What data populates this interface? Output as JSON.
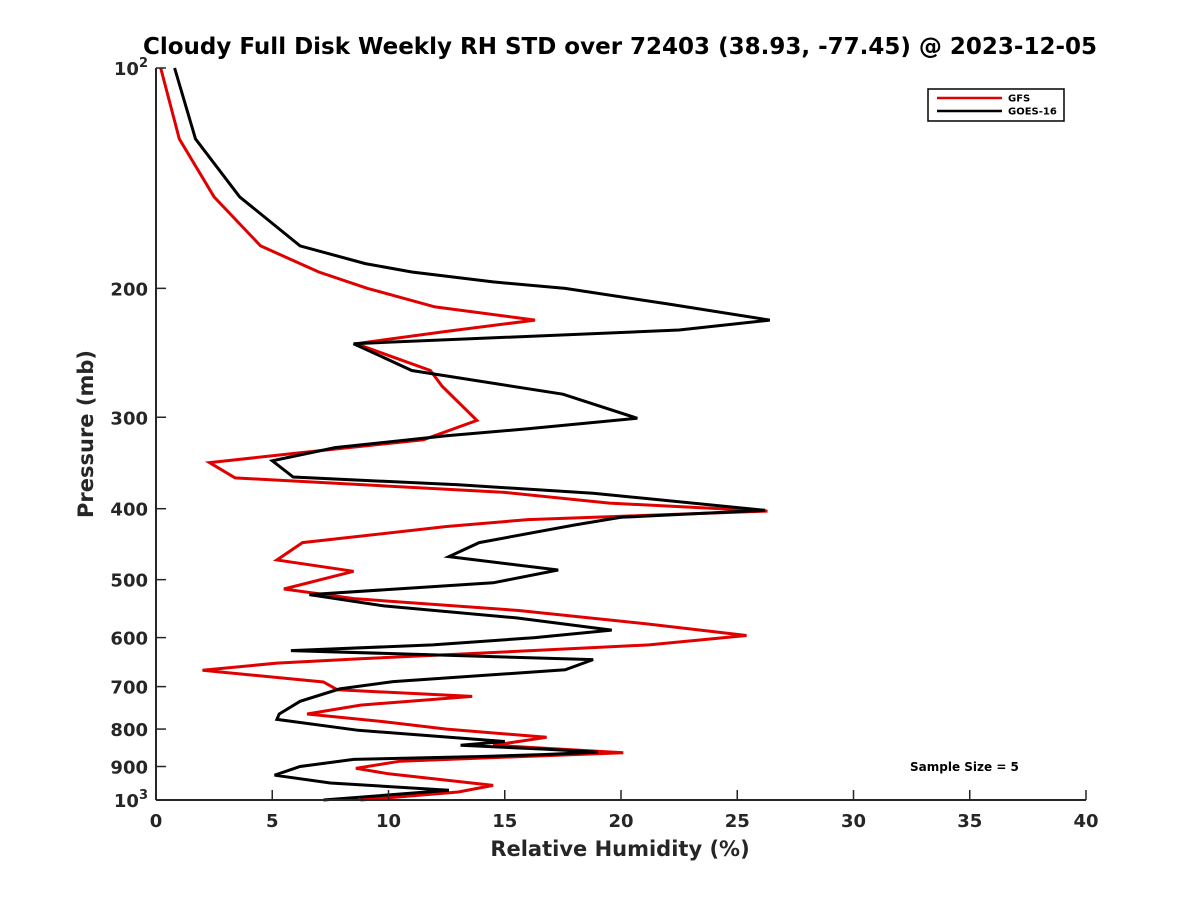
{
  "chart_data": {
    "type": "line",
    "title": "Cloudy Full Disk Weekly RH STD over 72403 (38.93, -77.45) @ 2023-12-05",
    "xlabel": "Relative Humidity (%)",
    "ylabel": "Pressure (mb)",
    "xlim": [
      0,
      40
    ],
    "ylim": [
      100,
      1000
    ],
    "yscale": "log",
    "y_reversed": true,
    "xticks": [
      0,
      5,
      10,
      15,
      20,
      25,
      30,
      35,
      40
    ],
    "xtick_labels": [
      "0",
      "5",
      "10",
      "15",
      "20",
      "25",
      "30",
      "35",
      "40"
    ],
    "yticks": [
      100,
      200,
      300,
      400,
      500,
      600,
      700,
      800,
      900,
      1000
    ],
    "ytick_labels": [
      {
        "base": "10",
        "exp": "2"
      },
      {
        "base": "200"
      },
      {
        "base": "300"
      },
      {
        "base": "400"
      },
      {
        "base": "500"
      },
      {
        "base": "600"
      },
      {
        "base": "700"
      },
      {
        "base": "800"
      },
      {
        "base": "900"
      },
      {
        "base": "10",
        "exp": "3"
      }
    ],
    "grid": false,
    "legend_position": "top-right",
    "annotation": "Sample Size = 5",
    "series": [
      {
        "name": "GFS",
        "color": "#e00000",
        "points": [
          [
            0.2,
            100
          ],
          [
            1.0,
            125
          ],
          [
            2.5,
            150
          ],
          [
            4.5,
            175
          ],
          [
            7.0,
            190
          ],
          [
            9.1,
            200
          ],
          [
            12.0,
            212
          ],
          [
            16.3,
            221
          ],
          [
            12.5,
            229
          ],
          [
            8.6,
            238
          ],
          [
            11.8,
            259
          ],
          [
            12.3,
            272
          ],
          [
            13.8,
            303
          ],
          [
            11.5,
            322
          ],
          [
            6.0,
            336
          ],
          [
            2.3,
            346
          ],
          [
            3.4,
            363
          ],
          [
            15.0,
            380
          ],
          [
            19.5,
            393
          ],
          [
            26.3,
            403
          ],
          [
            16.0,
            414
          ],
          [
            12.5,
            423
          ],
          [
            6.3,
            445
          ],
          [
            5.2,
            470
          ],
          [
            8.5,
            487
          ],
          [
            5.5,
            515
          ],
          [
            8.6,
            531
          ],
          [
            15.6,
            551
          ],
          [
            21.2,
            575
          ],
          [
            25.4,
            596
          ],
          [
            21.2,
            614
          ],
          [
            13.5,
            631
          ],
          [
            8.9,
            641
          ],
          [
            5.2,
            650
          ],
          [
            2.0,
            665
          ],
          [
            7.2,
            690
          ],
          [
            7.8,
            707
          ],
          [
            13.6,
            722
          ],
          [
            8.8,
            742
          ],
          [
            6.5,
            763
          ],
          [
            10.0,
            783
          ],
          [
            12.5,
            800
          ],
          [
            16.8,
            821
          ],
          [
            14.5,
            842
          ],
          [
            20.1,
            862
          ],
          [
            15.8,
            872
          ],
          [
            10.5,
            885
          ],
          [
            8.6,
            905
          ],
          [
            10.0,
            921
          ],
          [
            14.5,
            955
          ],
          [
            13.0,
            975
          ],
          [
            8.8,
            1000
          ]
        ]
      },
      {
        "name": "GOES-16",
        "color": "#000000",
        "points": [
          [
            0.8,
            100
          ],
          [
            1.7,
            125
          ],
          [
            3.6,
            150
          ],
          [
            6.2,
            175
          ],
          [
            9.0,
            185
          ],
          [
            11.0,
            190
          ],
          [
            14.5,
            196
          ],
          [
            17.6,
            200
          ],
          [
            22.0,
            210
          ],
          [
            26.4,
            221
          ],
          [
            22.5,
            228
          ],
          [
            8.5,
            238
          ],
          [
            11.0,
            259
          ],
          [
            17.5,
            279
          ],
          [
            20.7,
            301
          ],
          [
            16.0,
            311
          ],
          [
            12.5,
            318
          ],
          [
            7.7,
            330
          ],
          [
            5.0,
            344
          ],
          [
            5.9,
            362
          ],
          [
            13.0,
            371
          ],
          [
            18.8,
            381
          ],
          [
            26.2,
            402
          ],
          [
            20.0,
            411
          ],
          [
            18.0,
            421
          ],
          [
            13.9,
            445
          ],
          [
            12.6,
            465
          ],
          [
            17.3,
            485
          ],
          [
            14.5,
            505
          ],
          [
            6.6,
            524
          ],
          [
            9.8,
            543
          ],
          [
            15.5,
            564
          ],
          [
            19.6,
            586
          ],
          [
            16.3,
            600
          ],
          [
            11.9,
            614
          ],
          [
            5.8,
            625
          ],
          [
            18.8,
            643
          ],
          [
            17.6,
            664
          ],
          [
            10.2,
            689
          ],
          [
            7.9,
            705
          ],
          [
            6.2,
            733
          ],
          [
            5.3,
            763
          ],
          [
            5.2,
            776
          ],
          [
            8.7,
            803
          ],
          [
            15.0,
            832
          ],
          [
            13.1,
            842
          ],
          [
            16.7,
            852
          ],
          [
            19.0,
            860
          ],
          [
            16.6,
            867
          ],
          [
            14.0,
            872
          ],
          [
            8.5,
            880
          ],
          [
            6.2,
            900
          ],
          [
            5.1,
            925
          ],
          [
            7.5,
            948
          ],
          [
            12.6,
            970
          ],
          [
            7.2,
            1000
          ]
        ]
      }
    ]
  }
}
